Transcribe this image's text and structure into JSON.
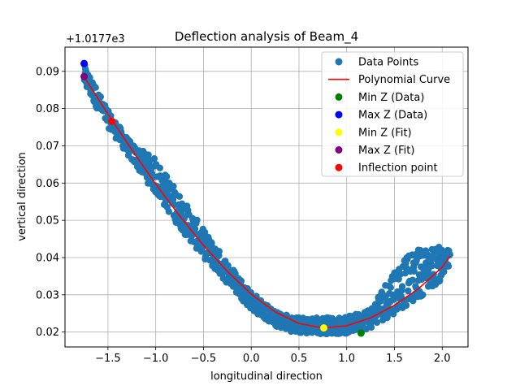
{
  "chart_data": {
    "type": "scatter",
    "title": "Deflection analysis of Beam_4",
    "xlabel": "longitudinal direction",
    "ylabel": "vertical direction",
    "y_offset_label": "+1.0177e3",
    "xlim": [
      -1.95,
      2.27
    ],
    "ylim": [
      0.016,
      0.0965
    ],
    "x_ticks": [
      -1.5,
      -1.0,
      -0.5,
      0.0,
      0.5,
      1.0,
      1.5,
      2.0
    ],
    "x_tick_labels": [
      "−1.5",
      "−1.0",
      "−0.5",
      "0.0",
      "0.5",
      "1.0",
      "1.5",
      "2.0"
    ],
    "y_ticks": [
      0.02,
      0.03,
      0.04,
      0.05,
      0.06,
      0.07,
      0.08,
      0.09
    ],
    "y_tick_labels": [
      "0.02",
      "0.03",
      "0.04",
      "0.05",
      "0.06",
      "0.07",
      "0.08",
      "0.09"
    ],
    "grid": true,
    "legend_position": "top-right",
    "colors": {
      "data_points": "#1f77b4",
      "polynomial_curve": "#ff0000",
      "min_z_data": "#008000",
      "max_z_data": "#0000ff",
      "min_z_fit": "#ffff00",
      "max_z_fit": "#800080",
      "inflection": "#ff0000"
    },
    "polynomial_curve": {
      "name": "Polynomial Curve",
      "x_range": [
        -1.75,
        2.08
      ],
      "x": [
        -1.75,
        -1.5,
        -1.25,
        -1.0,
        -0.75,
        -0.5,
        -0.25,
        0.0,
        0.25,
        0.5,
        0.75,
        1.0,
        1.25,
        1.5,
        1.75,
        2.0,
        2.08
      ],
      "y": [
        0.0885,
        0.0785,
        0.0689,
        0.0597,
        0.0512,
        0.0433,
        0.0363,
        0.0302,
        0.0254,
        0.0223,
        0.0211,
        0.0217,
        0.0238,
        0.0272,
        0.0316,
        0.0374,
        0.0404
      ]
    },
    "data_points": {
      "name": "Data Points",
      "envelope_x": [
        -1.75,
        -1.5,
        -1.25,
        -1.0,
        -0.75,
        -0.5,
        -0.25,
        0.0,
        0.25,
        0.5,
        0.75,
        1.0,
        1.25,
        1.5,
        1.75,
        2.0,
        2.08
      ],
      "envelope_lower": [
        0.086,
        0.075,
        0.066,
        0.057,
        0.048,
        0.04,
        0.033,
        0.026,
        0.0215,
        0.0195,
        0.0195,
        0.0195,
        0.021,
        0.025,
        0.029,
        0.034,
        0.037
      ],
      "envelope_upper": [
        0.092,
        0.0795,
        0.0705,
        0.0665,
        0.057,
        0.0475,
        0.039,
        0.031,
        0.0255,
        0.024,
        0.024,
        0.024,
        0.0265,
        0.0375,
        0.0425,
        0.043,
        0.042
      ],
      "count": 900
    },
    "markers": [
      {
        "name": "Min Z (Data)",
        "x": 1.15,
        "y": 0.0197,
        "color_key": "min_z_data"
      },
      {
        "name": "Max Z (Data)",
        "x": -1.75,
        "y": 0.0921,
        "color_key": "max_z_data"
      },
      {
        "name": "Min Z (Fit)",
        "x": 0.76,
        "y": 0.0211,
        "color_key": "min_z_fit"
      },
      {
        "name": "Max Z (Fit)",
        "x": -1.75,
        "y": 0.0886,
        "color_key": "max_z_fit"
      },
      {
        "name": "Inflection point",
        "x": -1.46,
        "y": 0.0766,
        "color_key": "inflection"
      }
    ],
    "legend": [
      {
        "label": "Data Points",
        "kind": "scatter",
        "color_key": "data_points"
      },
      {
        "label": "Polynomial Curve",
        "kind": "line",
        "color_key": "polynomial_curve"
      },
      {
        "label": "Min Z (Data)",
        "kind": "scatter",
        "color_key": "min_z_data"
      },
      {
        "label": "Max Z (Data)",
        "kind": "scatter",
        "color_key": "max_z_data"
      },
      {
        "label": "Min Z (Fit)",
        "kind": "scatter",
        "color_key": "min_z_fit"
      },
      {
        "label": "Max Z (Fit)",
        "kind": "scatter",
        "color_key": "max_z_fit"
      },
      {
        "label": "Inflection point",
        "kind": "scatter",
        "color_key": "inflection"
      }
    ]
  }
}
